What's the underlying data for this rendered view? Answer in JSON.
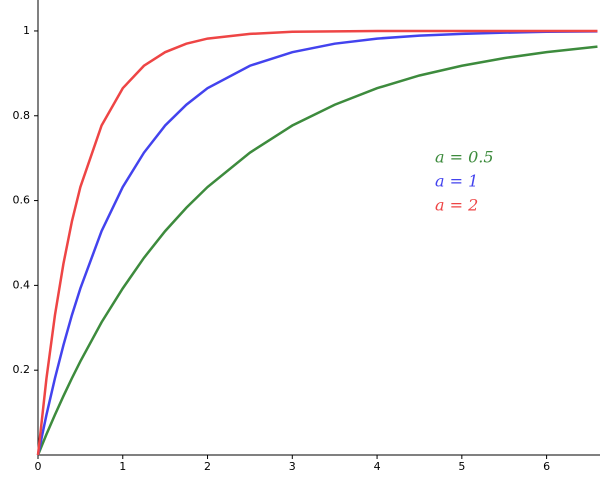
{
  "chart_data": {
    "type": "line",
    "x": [
      0,
      0.1,
      0.2,
      0.3,
      0.4,
      0.5,
      0.75,
      1,
      1.25,
      1.5,
      1.75,
      2,
      2.5,
      3,
      3.5,
      4,
      4.5,
      5,
      5.5,
      6,
      6.6
    ],
    "series": [
      {
        "name": "a = 0.5",
        "color": "#3d8b3d",
        "values": [
          0,
          0.049,
          0.095,
          0.139,
          0.181,
          0.221,
          0.313,
          0.393,
          0.465,
          0.528,
          0.583,
          0.632,
          0.713,
          0.777,
          0.826,
          0.865,
          0.895,
          0.918,
          0.936,
          0.95,
          0.963
        ]
      },
      {
        "name": "a = 1",
        "color": "#4343ee",
        "values": [
          0,
          0.095,
          0.181,
          0.259,
          0.33,
          0.393,
          0.528,
          0.632,
          0.713,
          0.777,
          0.826,
          0.865,
          0.918,
          0.95,
          0.97,
          0.982,
          0.989,
          0.993,
          0.996,
          0.998,
          0.999
        ]
      },
      {
        "name": "a = 2",
        "color": "#ee4545",
        "values": [
          0,
          0.181,
          0.33,
          0.451,
          0.551,
          0.632,
          0.777,
          0.865,
          0.918,
          0.95,
          0.97,
          0.982,
          0.993,
          0.998,
          0.999,
          1,
          1,
          1,
          1,
          1,
          1
        ]
      }
    ],
    "xlim": [
      0,
      6.63
    ],
    "ylim": [
      0,
      1.073
    ],
    "xticks": [
      0,
      1,
      2,
      3,
      4,
      5,
      6
    ],
    "yticks": [
      0.2,
      0.4,
      0.6,
      0.8,
      1
    ]
  }
}
